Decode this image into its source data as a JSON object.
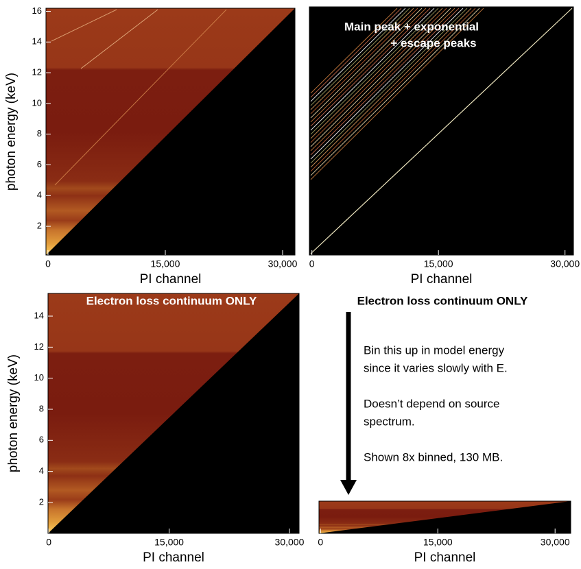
{
  "chart_data": [
    {
      "type": "heatmap",
      "xlabel": "PI channel",
      "ylabel": "photon energy (keV)",
      "xlim": [
        -260,
        31580
      ],
      "ylim": [
        0.13,
        16.2
      ],
      "xticks": [
        0,
        {
          "value": 15000,
          "label": "15,000"
        },
        {
          "value": 30000,
          "label": "30,000"
        }
      ],
      "yticks": [
        2,
        4,
        6,
        8,
        10,
        12,
        14,
        16
      ]
    },
    {
      "type": "lines",
      "xlabel": "PI channel",
      "annotations": [
        "Main peak + exponential",
        "+ escape peaks"
      ],
      "xlim": [
        -300,
        31000
      ],
      "ylim": [
        0.13,
        16.2
      ],
      "xticks": [
        0,
        {
          "value": 15000,
          "label": "15,000"
        },
        {
          "value": 30000,
          "label": "30,000"
        }
      ]
    },
    {
      "type": "heatmap",
      "xlabel": "PI channel",
      "ylabel": "photon energy (keV)",
      "annotations": [
        "Electron loss continuum ONLY"
      ],
      "xlim": [
        -100,
        31200
      ],
      "ylim": [
        0.01,
        15.46
      ],
      "xticks": [
        0,
        {
          "value": 15000,
          "label": "15,000"
        },
        {
          "value": 30000,
          "label": "30,000"
        }
      ],
      "yticks": [
        2,
        4,
        6,
        8,
        10,
        12,
        14
      ]
    },
    {
      "type": "heatmap",
      "xlabel": "PI channel",
      "xlim": [
        -200,
        32000
      ],
      "ylim": [
        0.01,
        15.46
      ],
      "xticks": [
        0,
        {
          "value": 15000,
          "label": "15,000"
        },
        {
          "value": 30000,
          "label": "30,000"
        }
      ]
    }
  ],
  "notes": {
    "heading": "Electron loss continuum ONLY",
    "paragraphs": [
      [
        "Bin this up in model energy",
        "since it varies slowly with E."
      ],
      [
        "Doesn’t depend on source",
        "spectrum."
      ],
      [
        "Shown 8x binned, 130 MB."
      ]
    ]
  }
}
